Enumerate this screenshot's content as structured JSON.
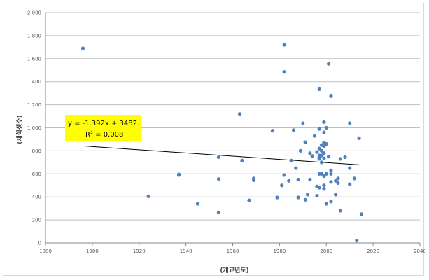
{
  "chart_data": {
    "type": "scatter",
    "title": "",
    "xlabel": "(개교년도)",
    "ylabel": "(재학생수)",
    "xlim": [
      1880,
      2040
    ],
    "ylim": [
      0,
      2000
    ],
    "x_ticks": [
      1880,
      1900,
      1920,
      1940,
      1960,
      1980,
      2000,
      2020,
      2040
    ],
    "y_ticks": [
      0,
      200,
      400,
      600,
      800,
      1000,
      1200,
      1400,
      1600,
      1800,
      2000
    ],
    "y_tick_labels": [
      "0",
      "200",
      "400",
      "600",
      "800",
      "1,000",
      "1,200",
      "1,400",
      "1,600",
      "1,800",
      "2,000"
    ],
    "grid": "horizontal",
    "colors": {
      "points": "#4f81bd",
      "trendline": "#000000",
      "label_bg": "#ffff00"
    },
    "points": [
      [
        1896,
        1690
      ],
      [
        1924,
        405
      ],
      [
        1937,
        595
      ],
      [
        1937,
        590
      ],
      [
        1945,
        340
      ],
      [
        1954,
        745
      ],
      [
        1954,
        555
      ],
      [
        1954,
        265
      ],
      [
        1963,
        1120
      ],
      [
        1964,
        715
      ],
      [
        1967,
        370
      ],
      [
        1969,
        560
      ],
      [
        1969,
        545
      ],
      [
        1977,
        975
      ],
      [
        1979,
        395
      ],
      [
        1981,
        500
      ],
      [
        1982,
        590
      ],
      [
        1982,
        1720
      ],
      [
        1982,
        1485
      ],
      [
        1984,
        540
      ],
      [
        1985,
        715
      ],
      [
        1986,
        980
      ],
      [
        1987,
        650
      ],
      [
        1988,
        550
      ],
      [
        1988,
        395
      ],
      [
        1989,
        800
      ],
      [
        1990,
        1040
      ],
      [
        1991,
        375
      ],
      [
        1991,
        875
      ],
      [
        1992,
        420
      ],
      [
        1993,
        780
      ],
      [
        1993,
        550
      ],
      [
        1994,
        755
      ],
      [
        1995,
        930
      ],
      [
        1996,
        410
      ],
      [
        1996,
        790
      ],
      [
        1996,
        490
      ],
      [
        1997,
        1335
      ],
      [
        1997,
        990
      ],
      [
        1997,
        820
      ],
      [
        1997,
        760
      ],
      [
        1997,
        745
      ],
      [
        1997,
        730
      ],
      [
        1997,
        600
      ],
      [
        1997,
        480
      ],
      [
        1998,
        800
      ],
      [
        1998,
        850
      ],
      [
        1998,
        760
      ],
      [
        1998,
        700
      ],
      [
        1998,
        600
      ],
      [
        1999,
        1050
      ],
      [
        1999,
        960
      ],
      [
        1999,
        870
      ],
      [
        1999,
        840
      ],
      [
        1999,
        780
      ],
      [
        1999,
        735
      ],
      [
        1999,
        580
      ],
      [
        1999,
        500
      ],
      [
        1999,
        470
      ],
      [
        2000,
        1000
      ],
      [
        2000,
        860
      ],
      [
        2000,
        600
      ],
      [
        2000,
        340
      ],
      [
        2001,
        1555
      ],
      [
        2001,
        750
      ],
      [
        2002,
        1275
      ],
      [
        2002,
        630
      ],
      [
        2002,
        600
      ],
      [
        2002,
        530
      ],
      [
        2002,
        360
      ],
      [
        2004,
        420
      ],
      [
        2004,
        540
      ],
      [
        2005,
        560
      ],
      [
        2005,
        520
      ],
      [
        2006,
        730
      ],
      [
        2006,
        280
      ],
      [
        2008,
        745
      ],
      [
        2010,
        1040
      ],
      [
        2010,
        650
      ],
      [
        2010,
        510
      ],
      [
        2012,
        560
      ],
      [
        2013,
        20
      ],
      [
        2014,
        910
      ],
      [
        2015,
        250
      ]
    ],
    "trendline": {
      "type": "linear",
      "slope": -1.392,
      "intercept": 3482,
      "x_range": [
        1896,
        2015
      ],
      "equation_label": "y = -1.392x + 3482.",
      "r2_label": "R² = 0.008"
    }
  }
}
